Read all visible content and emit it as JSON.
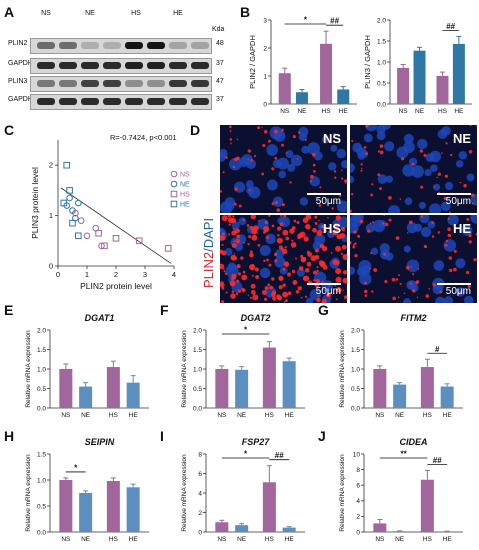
{
  "colors": {
    "purple": "#a1669b",
    "blue": "#2f78a5",
    "blue2": "#5b8fc0",
    "orange": "#e4b45a"
  },
  "panelA": {
    "letter": "A",
    "lanes": [
      "NS",
      "NE",
      "HS",
      "HE"
    ],
    "kda_header": "Kda",
    "rows": [
      {
        "label": "PLIN2",
        "kda": "48"
      },
      {
        "label": "GAPDH",
        "kda": "37"
      },
      {
        "label": "PLIN3",
        "kda": "47"
      },
      {
        "label": "GAPDH",
        "kda": "37"
      }
    ]
  },
  "panelB": {
    "letter": "B"
  },
  "panelC": {
    "letter": "C",
    "stat": "R=-0.7424,  p<0.001",
    "legend": [
      "NS",
      "NE",
      "HS",
      "HE"
    ]
  },
  "panelD": {
    "letter": "D",
    "side_label_red": "PLIN2",
    "side_label_blue": "/DAPI",
    "tiles": [
      "NS",
      "NE",
      "HS",
      "HE"
    ],
    "scale": "50μm"
  },
  "panelE": {
    "letter": "E"
  },
  "panelF": {
    "letter": "F"
  },
  "panelG": {
    "letter": "G"
  },
  "panelH": {
    "letter": "H"
  },
  "panelI": {
    "letter": "I"
  },
  "panelJ": {
    "letter": "J"
  },
  "chart_data": [
    {
      "id": "B1",
      "type": "bar",
      "categories": [
        "NS",
        "NE",
        "HS",
        "HE"
      ],
      "values": [
        1.1,
        0.42,
        2.15,
        0.52
      ],
      "errors": [
        0.18,
        0.1,
        0.45,
        0.1
      ],
      "ylabel": "PLIN2 / GAPDH",
      "ylim": [
        0,
        3
      ],
      "yticks": [
        0,
        1,
        2,
        3
      ],
      "annotations": [
        {
          "text": "*",
          "from": 0,
          "to": 2
        },
        {
          "text": "##",
          "from": 2,
          "to": 3
        }
      ]
    },
    {
      "id": "B2",
      "type": "bar",
      "categories": [
        "NS",
        "NE",
        "HS",
        "HE"
      ],
      "values": [
        0.86,
        1.27,
        0.67,
        1.43
      ],
      "errors": [
        0.08,
        0.08,
        0.09,
        0.18
      ],
      "ylabel": "PLIN3 / GAPDH",
      "ylim": [
        0,
        2
      ],
      "yticks": [
        0.0,
        0.5,
        1.0,
        1.5,
        2.0
      ],
      "annotations": [
        {
          "text": "##",
          "from": 2,
          "to": 3
        }
      ]
    },
    {
      "id": "C",
      "type": "scatter",
      "xlabel": "PLIN2 protein level",
      "ylabel": "PLIN3 protein level",
      "xlim": [
        0,
        4
      ],
      "ylim": [
        0,
        2.5
      ],
      "xticks": [
        0,
        1,
        2,
        3,
        4
      ],
      "yticks": [
        0,
        1,
        2
      ],
      "series": [
        {
          "name": "NS",
          "points": [
            [
              0.8,
              0.9
            ],
            [
              1.0,
              0.6
            ],
            [
              1.3,
              0.75
            ],
            [
              1.5,
              0.4
            ],
            [
              0.6,
              1.05
            ]
          ]
        },
        {
          "name": "NE",
          "points": [
            [
              0.3,
              1.2
            ],
            [
              0.4,
              1.35
            ],
            [
              0.5,
              1.1
            ],
            [
              0.6,
              0.95
            ],
            [
              0.7,
              1.25
            ]
          ]
        },
        {
          "name": "HS",
          "points": [
            [
              1.6,
              0.4
            ],
            [
              2.0,
              0.55
            ],
            [
              2.8,
              0.5
            ],
            [
              3.8,
              0.35
            ],
            [
              1.4,
              0.65
            ]
          ]
        },
        {
          "name": "HE",
          "points": [
            [
              0.3,
              2.0
            ],
            [
              0.4,
              1.5
            ],
            [
              0.5,
              0.85
            ],
            [
              0.7,
              0.6
            ],
            [
              0.2,
              1.25
            ]
          ]
        }
      ]
    },
    {
      "id": "E",
      "type": "bar",
      "title": "DGAT1",
      "categories": [
        "NS",
        "NE",
        "HS",
        "HE"
      ],
      "values": [
        1.0,
        0.55,
        1.05,
        0.65
      ],
      "errors": [
        0.13,
        0.1,
        0.15,
        0.18
      ],
      "ylabel": "Relative mRNA expression",
      "ylim": [
        0,
        2
      ],
      "yticks": [
        0.0,
        0.5,
        1.0,
        1.5,
        2.0
      ],
      "annotations": []
    },
    {
      "id": "F",
      "type": "bar",
      "title": "DGAT2",
      "categories": [
        "NS",
        "NE",
        "HS",
        "HE"
      ],
      "values": [
        1.0,
        0.98,
        1.55,
        1.2
      ],
      "errors": [
        0.08,
        0.08,
        0.15,
        0.08
      ],
      "ylabel": "Relative mRNA expression",
      "ylim": [
        0,
        2
      ],
      "yticks": [
        0.0,
        0.5,
        1.0,
        1.5,
        2.0
      ],
      "annotations": [
        {
          "text": "*",
          "from": 0,
          "to": 2
        }
      ]
    },
    {
      "id": "G",
      "type": "bar",
      "title": "FITM2",
      "categories": [
        "NS",
        "NE",
        "HS",
        "HE"
      ],
      "values": [
        1.0,
        0.6,
        1.05,
        0.55
      ],
      "errors": [
        0.08,
        0.05,
        0.2,
        0.07
      ],
      "ylabel": "Relative mRNA expression",
      "ylim": [
        0,
        2
      ],
      "yticks": [
        0.0,
        0.5,
        1.0,
        1.5,
        2.0
      ],
      "annotations": [
        {
          "text": "#",
          "from": 2,
          "to": 3
        }
      ]
    },
    {
      "id": "H",
      "type": "bar",
      "title": "SEIPIN",
      "categories": [
        "NS",
        "NE",
        "HS",
        "HE"
      ],
      "values": [
        1.0,
        0.75,
        0.98,
        0.86
      ],
      "errors": [
        0.04,
        0.04,
        0.06,
        0.06
      ],
      "ylabel": "Relative mRNA expression",
      "ylim": [
        0,
        1.5
      ],
      "yticks": [
        0.0,
        0.5,
        1.0,
        1.5
      ],
      "annotations": [
        {
          "text": "*",
          "from": 0,
          "to": 1
        }
      ]
    },
    {
      "id": "I",
      "type": "bar",
      "title": "FSP27",
      "categories": [
        "NS",
        "NE",
        "HS",
        "HE"
      ],
      "values": [
        1.0,
        0.7,
        5.1,
        0.45
      ],
      "errors": [
        0.2,
        0.15,
        1.7,
        0.1
      ],
      "ylabel": "Relative mRNA expression",
      "ylim": [
        0,
        8
      ],
      "yticks": [
        0,
        2,
        4,
        6,
        8
      ],
      "annotations": [
        {
          "text": "*",
          "from": 0,
          "to": 2
        },
        {
          "text": "##",
          "from": 2,
          "to": 3
        }
      ]
    },
    {
      "id": "J",
      "type": "bar",
      "title": "CIDEA",
      "categories": [
        "NS",
        "NE",
        "HS",
        "HE"
      ],
      "values": [
        1.1,
        0.1,
        6.7,
        0.08
      ],
      "errors": [
        0.5,
        0.05,
        1.2,
        0.03
      ],
      "ylabel": "Relative mRNA expression",
      "ylim": [
        0,
        10
      ],
      "yticks": [
        0,
        2,
        4,
        6,
        8,
        10
      ],
      "annotations": [
        {
          "text": "**",
          "from": 0,
          "to": 2
        },
        {
          "text": "##",
          "from": 2,
          "to": 3
        }
      ]
    }
  ]
}
